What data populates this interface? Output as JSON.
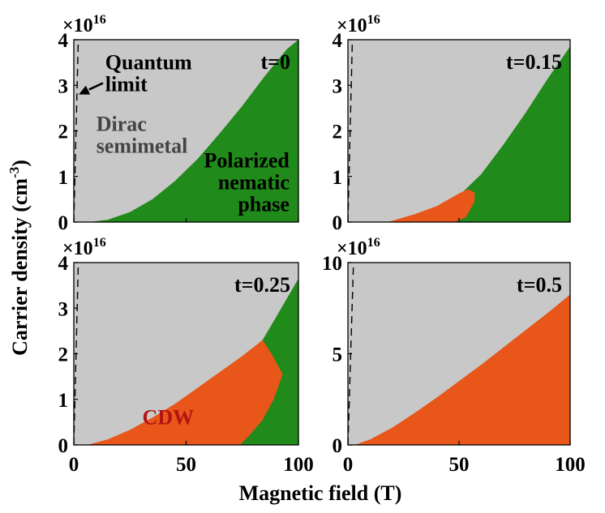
{
  "figure": {
    "ylabel_prefix": "Carrier density (cm",
    "ylabel_sup": "-3",
    "ylabel_suffix": ")",
    "xlabel": "Magnetic field (T)"
  },
  "colors": {
    "dirac": "#c8c8c8",
    "nematic": "#208a1a",
    "cdw": "#e8561a",
    "label_dark": "#000000",
    "label_dirac": "#444444",
    "label_cdw": "#b21414"
  },
  "chart_data": [
    {
      "type": "area",
      "panel": "t=0",
      "title": "t=0",
      "exponent_base": "×10",
      "exponent_power": "16",
      "xlim": [
        0,
        100
      ],
      "ylim": [
        0,
        4
      ],
      "xticks": [
        0,
        50,
        100
      ],
      "yticks": [
        0,
        1,
        2,
        3,
        4
      ],
      "xtick_labels": [
        "0",
        "50",
        "100"
      ],
      "ytick_labels": [
        "0",
        "1",
        "2",
        "3",
        "4"
      ],
      "show_xticks": false,
      "quantum_limit": [
        [
          0,
          0
        ],
        [
          2,
          4
        ]
      ],
      "regions": [
        {
          "name": "Polarized nematic phase",
          "color_key": "nematic",
          "polygon": [
            [
              7,
              0
            ],
            [
              15,
              0.05
            ],
            [
              25,
              0.22
            ],
            [
              35,
              0.5
            ],
            [
              45,
              0.9
            ],
            [
              55,
              1.38
            ],
            [
              65,
              1.95
            ],
            [
              75,
              2.55
            ],
            [
              85,
              3.2
            ],
            [
              95,
              3.8
            ],
            [
              100,
              4
            ],
            [
              100,
              0
            ]
          ]
        }
      ],
      "annotations": [
        {
          "lines": [
            "Quantum",
            "limit"
          ],
          "x": 14,
          "y": 3.35,
          "anchor": "start",
          "color_key": "label_dark"
        },
        {
          "lines": [
            "Dirac",
            "semimetal"
          ],
          "x": 10,
          "y": 2.0,
          "anchor": "start",
          "color_key": "label_dirac"
        },
        {
          "lines": [
            "Polarized",
            "nematic",
            "phase"
          ],
          "x": 96,
          "y": 1.2,
          "anchor": "end",
          "color_key": "label_dark"
        }
      ],
      "arrow": {
        "from": [
          13,
          3.05
        ],
        "to": [
          2.2,
          2.8
        ]
      }
    },
    {
      "type": "area",
      "panel": "t=0.15",
      "title": "t=0.15",
      "exponent_base": "×10",
      "exponent_power": "16",
      "xlim": [
        0,
        100
      ],
      "ylim": [
        0,
        4
      ],
      "xticks": [
        0,
        50,
        100
      ],
      "yticks": [
        0,
        1,
        2,
        3,
        4
      ],
      "xtick_labels": [
        "0",
        "50",
        "100"
      ],
      "ytick_labels": [
        "0",
        "1",
        "2",
        "3",
        "4"
      ],
      "show_xticks": false,
      "quantum_limit": [
        [
          0,
          0
        ],
        [
          2,
          4
        ]
      ],
      "regions": [
        {
          "name": "Polarized nematic phase",
          "color_key": "nematic",
          "polygon": [
            [
              18,
              0
            ],
            [
              30,
              0.1
            ],
            [
              40,
              0.3
            ],
            [
              50,
              0.58
            ],
            [
              60,
              1.05
            ],
            [
              70,
              1.7
            ],
            [
              80,
              2.4
            ],
            [
              90,
              3.15
            ],
            [
              100,
              3.85
            ],
            [
              100,
              0
            ]
          ]
        },
        {
          "name": "CDW",
          "color_key": "cdw",
          "polygon": [
            [
              18,
              0
            ],
            [
              30,
              0.17
            ],
            [
              40,
              0.35
            ],
            [
              50,
              0.63
            ],
            [
              54,
              0.72
            ],
            [
              57,
              0.65
            ],
            [
              57,
              0.45
            ],
            [
              53,
              0.1
            ],
            [
              48,
              0
            ],
            [
              36,
              0
            ]
          ]
        }
      ],
      "annotations": []
    },
    {
      "type": "area",
      "panel": "t=0.25",
      "title": "t=0.25",
      "exponent_base": "×10",
      "exponent_power": "16",
      "xlim": [
        0,
        100
      ],
      "ylim": [
        0,
        4
      ],
      "xticks": [
        0,
        50,
        100
      ],
      "yticks": [
        0,
        1,
        2,
        3,
        4
      ],
      "xtick_labels": [
        "0",
        "50",
        "100"
      ],
      "ytick_labels": [
        "0",
        "1",
        "2",
        "3",
        "4"
      ],
      "show_xticks": true,
      "quantum_limit": [
        [
          0,
          0
        ],
        [
          2,
          4
        ]
      ],
      "regions": [
        {
          "name": "Polarized nematic phase",
          "color_key": "nematic",
          "polygon": [
            [
              84,
              2.3
            ],
            [
              90,
              2.8
            ],
            [
              100,
              3.65
            ],
            [
              100,
              0
            ],
            [
              74,
              0
            ]
          ]
        },
        {
          "name": "CDW",
          "color_key": "cdw",
          "polygon": [
            [
              6,
              0
            ],
            [
              15,
              0.12
            ],
            [
              25,
              0.33
            ],
            [
              35,
              0.6
            ],
            [
              45,
              0.9
            ],
            [
              55,
              1.25
            ],
            [
              65,
              1.6
            ],
            [
              75,
              1.95
            ],
            [
              84,
              2.3
            ],
            [
              88,
              2.0
            ],
            [
              93,
              1.55
            ],
            [
              89,
              1.0
            ],
            [
              84,
              0.55
            ],
            [
              78,
              0.2
            ],
            [
              74,
              0
            ]
          ]
        }
      ],
      "annotations": [
        {
          "lines": [
            "CDW"
          ],
          "x": 42,
          "y": 0.45,
          "anchor": "middle",
          "color_key": "label_cdw"
        }
      ]
    },
    {
      "type": "area",
      "panel": "t=0.5",
      "title": "t=0.5",
      "exponent_base": "×10",
      "exponent_power": "16",
      "xlim": [
        0,
        100
      ],
      "ylim": [
        0,
        10
      ],
      "xticks": [
        0,
        50,
        100
      ],
      "yticks": [
        0,
        5,
        10
      ],
      "xtick_labels": [
        "0",
        "50",
        "100"
      ],
      "ytick_labels": [
        "0",
        "5",
        "10"
      ],
      "show_xticks": true,
      "quantum_limit": [
        [
          0,
          0
        ],
        [
          2.5,
          10
        ]
      ],
      "regions": [
        {
          "name": "CDW",
          "color_key": "cdw",
          "polygon": [
            [
              3,
              0
            ],
            [
              10,
              0.3
            ],
            [
              20,
              0.95
            ],
            [
              30,
              1.75
            ],
            [
              40,
              2.6
            ],
            [
              50,
              3.5
            ],
            [
              60,
              4.4
            ],
            [
              70,
              5.35
            ],
            [
              80,
              6.3
            ],
            [
              90,
              7.25
            ],
            [
              100,
              8.25
            ],
            [
              100,
              0
            ]
          ]
        }
      ],
      "annotations": []
    }
  ]
}
